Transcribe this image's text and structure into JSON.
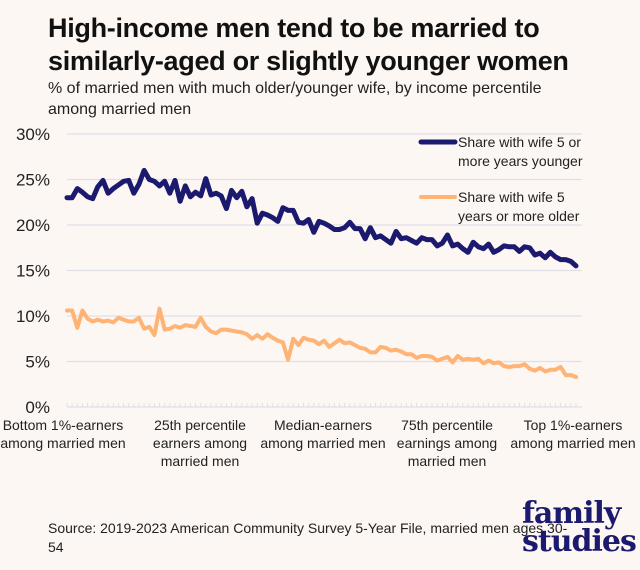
{
  "title": "High-income men tend to be married to similarly-aged or slightly younger women",
  "subtitle": "% of married men with much older/younger wife, by income percentile among married men",
  "source": "Source: 2019-2023 American Community Survey 5-Year File, married men ages 30-54",
  "logo": {
    "line1": "family",
    "line2": "studies"
  },
  "colors": {
    "background": "#fdf7f3",
    "younger": "#1b1a6e",
    "older": "#ffb375",
    "grid": "#dfe0e8"
  },
  "chart_data": {
    "type": "line",
    "title": "High-income men tend to be married to similarly-aged or slightly younger women",
    "subtitle": "% of married men with much older/younger wife, by income percentile among married men",
    "xlabel": "Income percentile among married men",
    "ylabel": "",
    "ylim": [
      0,
      30
    ],
    "yticks": [
      0,
      5,
      10,
      15,
      20,
      25,
      30
    ],
    "ytick_labels": [
      "0%",
      "5%",
      "10%",
      "15%",
      "20%",
      "25%",
      "30%"
    ],
    "x_range": [
      1,
      100
    ],
    "x_tick_positions": [
      1,
      25,
      50,
      75,
      100
    ],
    "x_tick_labels": [
      "Bottom 1%-earners among married men",
      "25th percentile earners among married men",
      "Median-earners among married men",
      "75th percentile earnings among married men",
      "Top 1%-earners among married men"
    ],
    "grid": true,
    "legend_position": "top-right",
    "x": [
      1,
      2,
      3,
      4,
      5,
      6,
      7,
      8,
      9,
      10,
      11,
      12,
      13,
      14,
      15,
      16,
      17,
      18,
      19,
      20,
      21,
      22,
      23,
      24,
      25,
      26,
      27,
      28,
      29,
      30,
      31,
      32,
      33,
      34,
      35,
      36,
      37,
      38,
      39,
      40,
      41,
      42,
      43,
      44,
      45,
      46,
      47,
      48,
      49,
      50,
      51,
      52,
      53,
      54,
      55,
      56,
      57,
      58,
      59,
      60,
      61,
      62,
      63,
      64,
      65,
      66,
      67,
      68,
      69,
      70,
      71,
      72,
      73,
      74,
      75,
      76,
      77,
      78,
      79,
      80,
      81,
      82,
      83,
      84,
      85,
      86,
      87,
      88,
      89,
      90,
      91,
      92,
      93,
      94,
      95,
      96,
      97,
      98,
      99,
      100
    ],
    "series": [
      {
        "name": "Share with wife 5 or more years younger",
        "color": "#1b1a6e",
        "values": [
          23.0,
          23.0,
          24.0,
          23.6,
          23.1,
          22.9,
          24.2,
          24.9,
          23.5,
          24.0,
          24.4,
          24.8,
          24.9,
          23.5,
          24.5,
          26.0,
          25.0,
          24.8,
          24.3,
          24.8,
          23.5,
          24.9,
          22.6,
          24.3,
          23.1,
          23.6,
          23.2,
          25.1,
          23.3,
          23.5,
          23.2,
          21.8,
          23.8,
          23.0,
          23.7,
          22.0,
          22.9,
          20.2,
          21.3,
          21.1,
          20.8,
          20.4,
          21.9,
          21.6,
          21.6,
          20.3,
          20.2,
          20.6,
          19.2,
          20.4,
          20.2,
          19.9,
          19.5,
          19.5,
          19.7,
          20.3,
          19.6,
          19.6,
          18.5,
          19.7,
          18.6,
          18.8,
          18.4,
          18.0,
          19.3,
          18.5,
          18.6,
          18.3,
          18.0,
          18.6,
          18.4,
          18.4,
          17.7,
          18.0,
          18.9,
          17.7,
          17.9,
          17.4,
          17.0,
          18.1,
          17.6,
          17.4,
          17.9,
          17.0,
          17.3,
          17.7,
          17.6,
          17.6,
          17.1,
          17.6,
          17.5,
          16.7,
          16.9,
          16.4,
          17.0,
          16.5,
          16.2,
          16.2,
          16.0,
          15.5
        ]
      },
      {
        "name": "Share with wife 5 years or more older",
        "color": "#ffb375",
        "values": [
          10.6,
          10.6,
          8.7,
          10.6,
          9.7,
          9.4,
          9.6,
          9.4,
          9.5,
          9.3,
          9.8,
          9.6,
          9.4,
          9.4,
          9.8,
          8.6,
          8.8,
          7.9,
          10.8,
          8.5,
          8.6,
          8.9,
          8.7,
          9.0,
          8.9,
          8.8,
          9.8,
          8.8,
          8.3,
          8.1,
          8.5,
          8.5,
          8.4,
          8.3,
          8.2,
          8.0,
          7.5,
          7.9,
          7.5,
          8.0,
          7.6,
          7.3,
          7.1,
          5.2,
          7.5,
          6.8,
          7.6,
          7.4,
          7.3,
          6.9,
          7.3,
          6.6,
          7.0,
          7.4,
          7.0,
          7.1,
          6.8,
          6.5,
          6.4,
          6.0,
          6.0,
          6.6,
          6.5,
          6.2,
          6.3,
          6.1,
          5.8,
          5.8,
          5.4,
          5.6,
          5.6,
          5.5,
          5.1,
          5.3,
          5.5,
          4.9,
          5.6,
          5.2,
          5.3,
          5.2,
          5.3,
          4.8,
          5.1,
          4.8,
          4.9,
          4.5,
          4.4,
          4.5,
          4.5,
          4.7,
          4.2,
          4.0,
          4.3,
          3.9,
          4.1,
          4.1,
          4.4,
          3.5,
          3.5,
          3.3
        ]
      }
    ]
  }
}
